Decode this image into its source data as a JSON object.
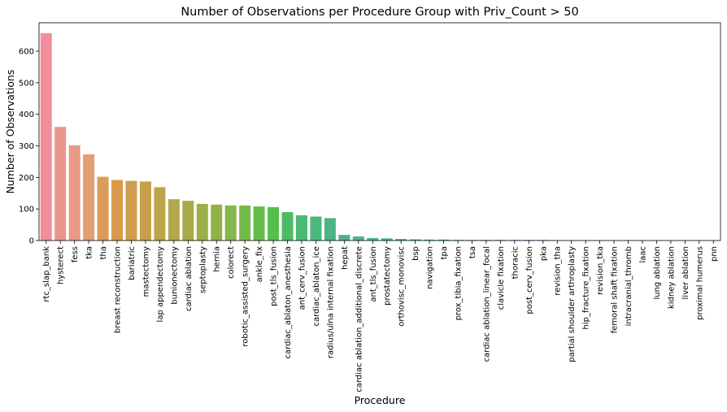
{
  "chart_data": {
    "type": "bar",
    "title": "Number of Observations per Procedure Group with Priv_Count > 50",
    "xlabel": "Procedure",
    "ylabel": "Number of Observations",
    "ylim": [
      0,
      690
    ],
    "yticks": [
      0,
      100,
      200,
      300,
      400,
      500,
      600
    ],
    "grid": false,
    "categories": [
      "rtc_slap_bank",
      "hysterect",
      "fess",
      "tka",
      "tha",
      "breast reconstruction",
      "bariatric",
      "mastectomy",
      "lap appendectomy",
      "bunionectomy",
      "cardiac ablation",
      "septoplasty",
      "hernia",
      "colorect",
      "robotic_assisted_surgery",
      "ankle_fix",
      "post_tls_fusion",
      "cardiac_ablaton_anesthesia",
      "ant_cerv_fusion",
      "cardiac_ablaton_ice",
      "radius/ulna internal fixation",
      "hepat",
      "cardiac ablation_additional_discrete",
      "ant_tls_fusion",
      "prostatectomy",
      "orthovisc_monovisc",
      "bsp",
      "navigation",
      "tpa",
      "prox_tibia_fixation",
      "tsa",
      "cardiac ablation_linear_focal",
      "clavicle fixation",
      "thoracic",
      "post_cerv_fusion",
      "pka",
      "revision_tha",
      "partial shoulder arthroplasty",
      "hip_fracture_fixation",
      "revision_tka",
      "femoral shaft fixation",
      "intracranial_thromb",
      "laac",
      "lung ablation",
      "kidney ablation",
      "liver ablation",
      "proximal humerus",
      "pnn"
    ],
    "values": [
      657,
      360,
      302,
      273,
      202,
      192,
      189,
      187,
      169,
      131,
      126,
      116,
      114,
      111,
      111,
      108,
      106,
      90,
      80,
      76,
      71,
      18,
      13,
      8,
      7,
      5,
      4,
      3,
      3,
      2,
      2,
      2,
      2,
      2,
      2,
      2,
      1,
      1,
      1,
      1,
      1,
      1,
      1,
      1,
      1,
      1,
      1,
      1
    ],
    "colors": [
      "#f08e9b",
      "#eb958f",
      "#e99a83",
      "#e29f73",
      "#dd9b5a",
      "#d9994c",
      "#cf9d4b",
      "#c6a04a",
      "#bca44a",
      "#b2a84a",
      "#a7ab4a",
      "#9daf49",
      "#92b249",
      "#84b649",
      "#74ba49",
      "#63bd4a",
      "#52c04b",
      "#4cbb64",
      "#4cb873",
      "#4db67d",
      "#4db486",
      "#4db38d",
      "#4eb195",
      "#4eb09b",
      "#4faea1",
      "#4facab",
      "#50aab1",
      "#50a9b7",
      "#51a7bd",
      "#53a5c4",
      "#56a3cb",
      "#5aa1d2",
      "#5e9fda",
      "#649ce2",
      "#6c98e9",
      "#7994ee",
      "#868ff0",
      "#928af1",
      "#9d86f2",
      "#a880f1",
      "#b27bf0",
      "#bd74ed",
      "#c76ee8",
      "#d26ae1",
      "#db6ad7",
      "#e26dca",
      "#e770bb",
      "#eb72ab"
    ]
  }
}
